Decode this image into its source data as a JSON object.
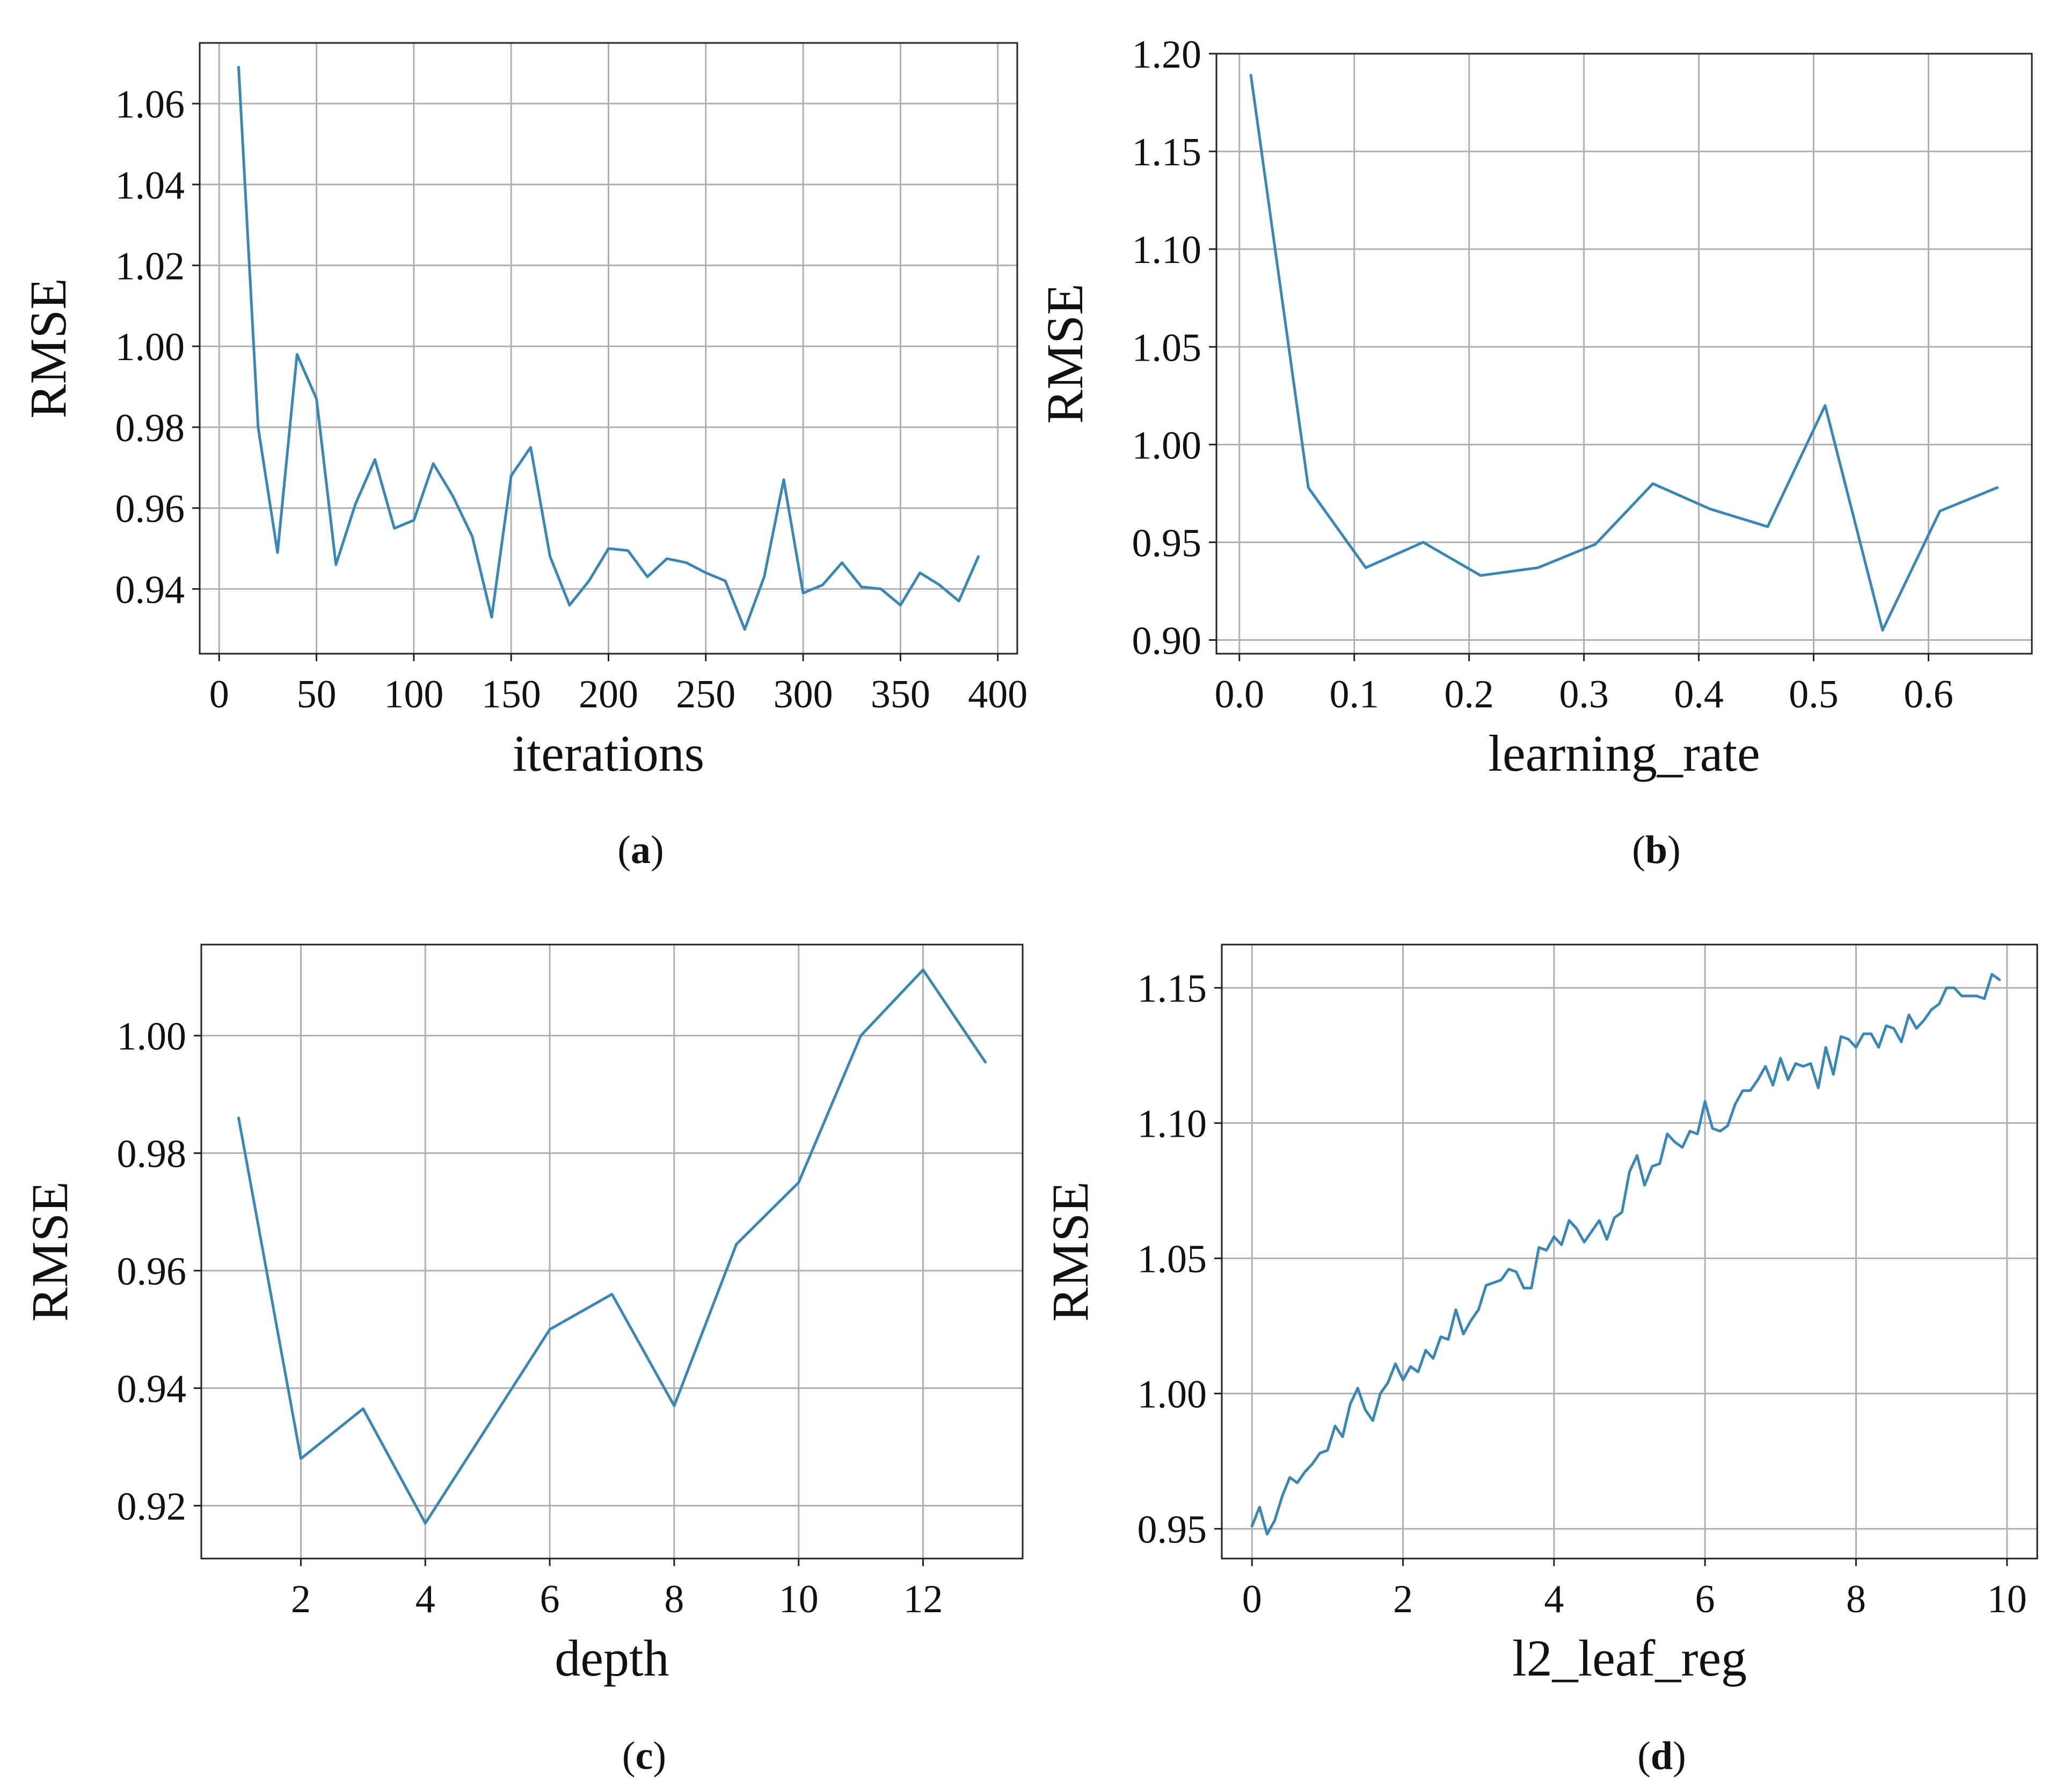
{
  "chart_data": [
    {
      "type": "line",
      "panel_label": "a",
      "title": "",
      "xlabel": "iterations",
      "ylabel": "RMSE",
      "xlim": [
        -10,
        410
      ],
      "ylim": [
        0.924,
        1.075
      ],
      "xticks": [
        0,
        50,
        100,
        150,
        200,
        250,
        300,
        350,
        400
      ],
      "yticks": [
        0.94,
        0.96,
        0.98,
        1.0,
        1.02,
        1.04,
        1.06
      ],
      "xtick_labels": [
        "0",
        "50",
        "100",
        "150",
        "200",
        "250",
        "300",
        "350",
        "400"
      ],
      "ytick_labels": [
        "0.94",
        "0.96",
        "0.98",
        "1.00",
        "1.02",
        "1.04",
        "1.06"
      ],
      "grid": true,
      "color": "#3a87b5",
      "x": [
        10,
        20,
        30,
        40,
        50,
        60,
        70,
        80,
        90,
        100,
        110,
        120,
        130,
        140,
        150,
        160,
        170,
        180,
        190,
        200,
        210,
        220,
        230,
        240,
        250,
        260,
        270,
        280,
        290,
        300,
        310,
        320,
        330,
        340,
        350,
        360,
        370,
        380,
        390
      ],
      "y": [
        1.069,
        0.98,
        0.949,
        0.998,
        0.987,
        0.946,
        0.961,
        0.972,
        0.955,
        0.957,
        0.971,
        0.963,
        0.953,
        0.933,
        0.968,
        0.975,
        0.948,
        0.936,
        0.942,
        0.95,
        0.9495,
        0.943,
        0.9475,
        0.9465,
        0.944,
        0.942,
        0.93,
        0.943,
        0.967,
        0.939,
        0.941,
        0.9465,
        0.9405,
        0.94,
        0.936,
        0.944,
        0.941,
        0.937,
        0.948
      ]
    },
    {
      "type": "line",
      "panel_label": "b",
      "title": "",
      "xlabel": "learning_rate",
      "ylabel": "RMSE",
      "xlim": [
        -0.02,
        0.69
      ],
      "ylim": [
        0.893,
        1.2
      ],
      "xticks": [
        0.0,
        0.1,
        0.2,
        0.3,
        0.4,
        0.5,
        0.6
      ],
      "yticks": [
        0.9,
        0.95,
        1.0,
        1.05,
        1.1,
        1.15,
        1.2
      ],
      "xtick_labels": [
        "0.0",
        "0.1",
        "0.2",
        "0.3",
        "0.4",
        "0.5",
        "0.6"
      ],
      "ytick_labels": [
        "0.90",
        "0.95",
        "1.00",
        "1.05",
        "1.10",
        "1.15",
        "1.20"
      ],
      "grid": true,
      "color": "#3a87b5",
      "x": [
        0.01,
        0.06,
        0.11,
        0.16,
        0.21,
        0.26,
        0.31,
        0.36,
        0.41,
        0.46,
        0.51,
        0.56,
        0.61,
        0.66
      ],
      "y": [
        1.189,
        0.978,
        0.937,
        0.95,
        0.933,
        0.937,
        0.949,
        0.98,
        0.967,
        0.958,
        1.02,
        0.905,
        0.966,
        0.978
      ]
    },
    {
      "type": "line",
      "panel_label": "c",
      "title": "",
      "xlabel": "depth",
      "ylabel": "RMSE",
      "xlim": [
        0.4,
        13.6
      ],
      "ylim": [
        0.911,
        1.0155
      ],
      "xticks": [
        2,
        4,
        6,
        8,
        10,
        12
      ],
      "yticks": [
        0.92,
        0.94,
        0.96,
        0.98,
        1.0
      ],
      "xtick_labels": [
        "2",
        "4",
        "6",
        "8",
        "10",
        "12"
      ],
      "ytick_labels": [
        "0.92",
        "0.94",
        "0.96",
        "0.98",
        "1.00"
      ],
      "grid": true,
      "color": "#3a87b5",
      "x": [
        1,
        2,
        3,
        4,
        5,
        6,
        7,
        8,
        9,
        10,
        11,
        12,
        13
      ],
      "y": [
        0.986,
        0.928,
        0.9365,
        0.917,
        0.9335,
        0.95,
        0.956,
        0.937,
        0.9645,
        0.975,
        1.0,
        1.0112,
        0.9955
      ]
    },
    {
      "type": "line",
      "panel_label": "d",
      "title": "",
      "xlabel": "l2_leaf_reg",
      "ylabel": "RMSE",
      "xlim": [
        -0.4,
        10.4
      ],
      "ylim": [
        0.939,
        1.166
      ],
      "xticks": [
        0,
        2,
        4,
        6,
        8,
        10
      ],
      "yticks": [
        0.95,
        1.0,
        1.05,
        1.1,
        1.15
      ],
      "xtick_labels": [
        "0",
        "2",
        "4",
        "6",
        "8",
        "10"
      ],
      "ytick_labels": [
        "0.95",
        "1.00",
        "1.05",
        "1.10",
        "1.15"
      ],
      "grid": true,
      "color": "#3a87b5",
      "x": [
        0.0,
        0.1,
        0.2,
        0.3,
        0.4,
        0.5,
        0.6,
        0.7,
        0.8,
        0.9,
        1.0,
        1.1,
        1.2,
        1.3,
        1.4,
        1.5,
        1.6,
        1.7,
        1.8,
        1.9,
        2.0,
        2.1,
        2.2,
        2.3,
        2.4,
        2.5,
        2.6,
        2.7,
        2.8,
        2.9,
        3.0,
        3.1,
        3.2,
        3.3,
        3.4,
        3.5,
        3.6,
        3.7,
        3.8,
        3.9,
        4.0,
        4.1,
        4.2,
        4.3,
        4.4,
        4.5,
        4.6,
        4.7,
        4.8,
        4.9,
        5.0,
        5.1,
        5.2,
        5.3,
        5.4,
        5.5,
        5.6,
        5.7,
        5.8,
        5.9,
        6.0,
        6.1,
        6.2,
        6.3,
        6.4,
        6.5,
        6.6,
        6.7,
        6.8,
        6.9,
        7.0,
        7.1,
        7.2,
        7.3,
        7.4,
        7.5,
        7.6,
        7.7,
        7.8,
        7.9,
        8.0,
        8.1,
        8.2,
        8.3,
        8.4,
        8.5,
        8.6,
        8.7,
        8.8,
        8.9,
        9.0,
        9.1,
        9.2,
        9.3,
        9.4,
        9.5,
        9.6,
        9.7,
        9.8,
        9.9
      ],
      "y": [
        0.951,
        0.958,
        0.948,
        0.953,
        0.962,
        0.969,
        0.967,
        0.971,
        0.974,
        0.978,
        0.979,
        0.988,
        0.984,
        0.996,
        1.002,
        0.994,
        0.99,
        1.0,
        1.004,
        1.011,
        1.005,
        1.01,
        1.008,
        1.016,
        1.013,
        1.021,
        1.02,
        1.031,
        1.022,
        1.027,
        1.031,
        1.04,
        1.041,
        1.042,
        1.046,
        1.045,
        1.039,
        1.039,
        1.054,
        1.053,
        1.058,
        1.055,
        1.064,
        1.061,
        1.056,
        1.06,
        1.064,
        1.057,
        1.065,
        1.067,
        1.082,
        1.088,
        1.077,
        1.084,
        1.085,
        1.096,
        1.093,
        1.091,
        1.097,
        1.096,
        1.108,
        1.098,
        1.097,
        1.099,
        1.107,
        1.112,
        1.112,
        1.116,
        1.121,
        1.114,
        1.124,
        1.116,
        1.122,
        1.121,
        1.122,
        1.113,
        1.128,
        1.118,
        1.132,
        1.131,
        1.128,
        1.133,
        1.133,
        1.128,
        1.136,
        1.135,
        1.13,
        1.14,
        1.135,
        1.138,
        1.142,
        1.144,
        1.15,
        1.15,
        1.147,
        1.147,
        1.147,
        1.146,
        1.155,
        1.153
      ]
    }
  ]
}
